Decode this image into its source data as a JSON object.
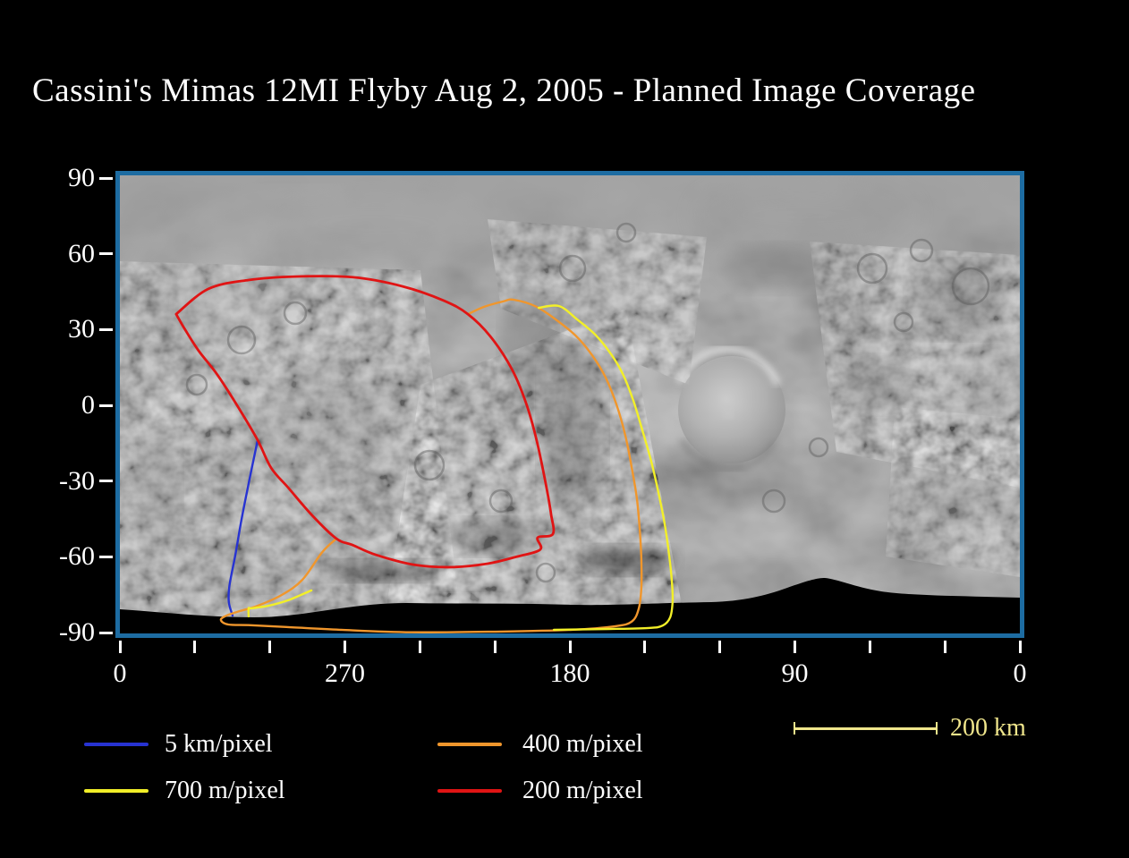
{
  "title": "Cassini's Mimas 12MI Flyby Aug 2, 2005 - Planned Image Coverage",
  "colors": {
    "background": "#000000",
    "text": "#ffffff",
    "frame": "#1d6ca2",
    "blue": "#2733d2",
    "yellow": "#f2ef28",
    "orange": "#f0962c",
    "red": "#e01414",
    "scale_bar": "#f0e68c"
  },
  "axes": {
    "x": {
      "tick_labels": [
        "0",
        "",
        "",
        "270",
        "",
        "",
        "180",
        "",
        "",
        "90",
        "",
        "",
        "0"
      ]
    },
    "y": {
      "tick_labels": [
        "90",
        "60",
        "30",
        "0",
        "-30",
        "-60",
        "-90"
      ]
    }
  },
  "legend": {
    "items": [
      {
        "label": "5 km/pixel",
        "color_key": "blue"
      },
      {
        "label": "700 m/pixel",
        "color_key": "yellow"
      },
      {
        "label": "400 m/pixel",
        "color_key": "orange"
      },
      {
        "label": "200 m/pixel",
        "color_key": "red"
      }
    ]
  },
  "scale_bar": {
    "label": "200 km",
    "length_km": 200
  },
  "chart_data": {
    "type": "map-overlay",
    "body": "Mimas",
    "projection": "equirectangular",
    "x_axis": {
      "range_deg": [
        360,
        0
      ],
      "tick_interval_deg": 30,
      "labeled_ticks": [
        0,
        270,
        180,
        90,
        0
      ]
    },
    "y_axis": {
      "range_deg": [
        90,
        -90
      ],
      "tick_interval_deg": 30
    },
    "grid": false,
    "legend_position": "bottom",
    "series": [
      {
        "name": "5 km/pixel",
        "color_key": "blue",
        "width": 2.4,
        "paths": [
          [
            [
              304.9,
              -13.8
            ],
            [
              308.1,
              -29.1
            ],
            [
              311.3,
              -45.0
            ],
            [
              313.8,
              -59.2
            ],
            [
              316.2,
              -71.6
            ],
            [
              316.4,
              -78.0
            ],
            [
              314.9,
              -83.3
            ]
          ]
        ]
      },
      {
        "name": "400 m/pixel",
        "color_key": "orange",
        "width": 2.4,
        "paths": [
          [
            [
              220.8,
              36.1
            ],
            [
              214.3,
              39.0
            ],
            [
              206.8,
              41.1
            ],
            [
              202.5,
              41.8
            ],
            [
              193.3,
              39.0
            ],
            [
              184.3,
              33.0
            ],
            [
              177.1,
              27.0
            ],
            [
              171.1,
              19.8
            ],
            [
              165.7,
              11.0
            ],
            [
              161.4,
              0.4
            ],
            [
              157.8,
              -12.0
            ],
            [
              155.3,
              -24.4
            ],
            [
              153.2,
              -36.9
            ],
            [
              152.1,
              -48.6
            ],
            [
              151.4,
              -60.9
            ],
            [
              151.4,
              -72.3
            ],
            [
              152.5,
              -80.8
            ],
            [
              155.3,
              -85.7
            ],
            [
              161.8,
              -87.5
            ],
            [
              179.0,
              -88.9
            ],
            [
              207.6,
              -89.6
            ],
            [
              243.3,
              -89.9
            ],
            [
              272.0,
              -88.9
            ],
            [
              293.4,
              -87.8
            ],
            [
              307.7,
              -87.1
            ],
            [
              316.7,
              -86.8
            ],
            [
              319.6,
              -85.0
            ],
            [
              317.4,
              -83.3
            ],
            [
              312.0,
              -81.5
            ],
            [
              304.9,
              -79.4
            ],
            [
              295.2,
              -75.1
            ],
            [
              287.0,
              -69.1
            ],
            [
              279.1,
              -58.2
            ],
            [
              273.4,
              -52.8
            ]
          ]
        ]
      },
      {
        "name": "700 m/pixel",
        "color_key": "yellow",
        "width": 2.4,
        "paths": [
          [
            [
              192.5,
              38.6
            ],
            [
              184.3,
              39.3
            ],
            [
              177.1,
              34.0
            ],
            [
              169.6,
              27.7
            ],
            [
              163.2,
              19.8
            ],
            [
              158.5,
              11.7
            ],
            [
              154.6,
              1.8
            ],
            [
              151.1,
              -9.6
            ],
            [
              147.5,
              -22.0
            ],
            [
              144.6,
              -34.4
            ],
            [
              142.1,
              -46.8
            ],
            [
              140.3,
              -59.2
            ],
            [
              139.2,
              -69.8
            ],
            [
              138.9,
              -77.6
            ],
            [
              139.9,
              -84.0
            ],
            [
              142.8,
              -87.2
            ],
            [
              148.5,
              -88.2
            ],
            [
              164.6,
              -88.6
            ],
            [
              186.4,
              -88.9
            ]
          ],
          [
            [
              283.4,
              -73.3
            ],
            [
              292.7,
              -77.2
            ],
            [
              300.6,
              -79.4
            ],
            [
              307.4,
              -80.4
            ],
            [
              308.5,
              -80.4
            ],
            [
              308.5,
              -83.6
            ]
          ]
        ]
      },
      {
        "name": "200 m/pixel",
        "color_key": "red",
        "width": 2.8,
        "paths": [
          [
            [
              337.5,
              36.1
            ],
            [
              324.6,
              46.1
            ],
            [
              308.5,
              49.6
            ],
            [
              289.9,
              51.0
            ],
            [
              266.6,
              50.7
            ],
            [
              246.9,
              47.1
            ],
            [
              230.5,
              41.5
            ],
            [
              220.8,
              36.1
            ],
            [
              211.8,
              27.3
            ],
            [
              203.3,
              14.5
            ],
            [
              197.6,
              1.1
            ],
            [
              193.3,
              -13.8
            ],
            [
              189.7,
              -30.8
            ],
            [
              187.5,
              -43.2
            ],
            [
              186.8,
              -51.0
            ],
            [
              192.9,
              -52.4
            ],
            [
              191.8,
              -57.1
            ],
            [
              201.1,
              -59.9
            ],
            [
              212.9,
              -62.7
            ],
            [
              227.2,
              -64.1
            ],
            [
              242.6,
              -63.1
            ],
            [
              257.7,
              -59.2
            ],
            [
              267.0,
              -55.3
            ],
            [
              273.4,
              -52.8
            ],
            [
              283.1,
              -43.6
            ],
            [
              292.7,
              -32.6
            ],
            [
              299.5,
              -24.8
            ],
            [
              304.9,
              -13.8
            ],
            [
              312.7,
              -0.7
            ],
            [
              321.0,
              12.1
            ],
            [
              328.5,
              21.6
            ],
            [
              333.8,
              29.8
            ],
            [
              337.5,
              36.1
            ]
          ]
        ]
      }
    ]
  }
}
